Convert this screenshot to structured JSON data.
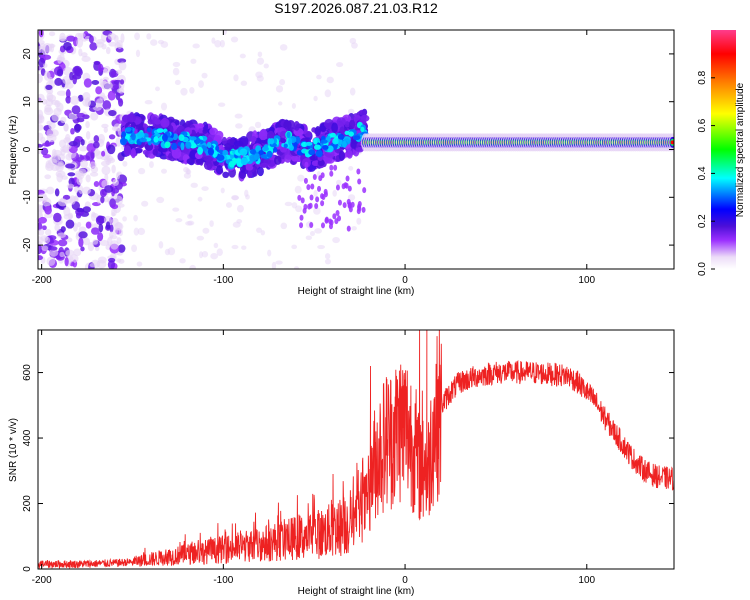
{
  "figure_title": "S197.2026.087.21.03.R12",
  "chart_data": [
    {
      "type": "heatmap",
      "title": "S197.2026.087.21.03.R12",
      "xlabel": "Height of straight line (km)",
      "ylabel": "Frequency (Hz)",
      "xlim": [
        -202,
        148
      ],
      "ylim": [
        -25,
        25
      ],
      "xticks": [
        -200,
        -100,
        0,
        100
      ],
      "yticks": [
        -20,
        -10,
        0,
        10,
        20
      ],
      "colorbar": {
        "label": "Normalized spectral amplitude",
        "range": [
          0.0,
          1.0
        ],
        "ticks": [
          0.0,
          0.2,
          0.4,
          0.6,
          0.8
        ],
        "colormap": [
          "#ffffff",
          "#e6d3f5",
          "#9b30ff",
          "#4b0fd8",
          "#0000ff",
          "#00ffff",
          "#00ff00",
          "#ffff00",
          "#ff7f00",
          "#ff0000",
          "#ff3c8c"
        ]
      },
      "features": [
        {
          "region": "scattered noise",
          "x_range": [
            -202,
            -155
          ],
          "freq_range": [
            -25,
            25
          ],
          "amplitude": 0.15
        },
        {
          "region": "wandering signal",
          "x_range": [
            -155,
            -22
          ],
          "freq_center": [
            3,
            3,
            2,
            1,
            -2,
            -1,
            2,
            0,
            2,
            4
          ],
          "amplitude": 0.35
        },
        {
          "region": "steady tone",
          "x_range": [
            -22,
            148
          ],
          "freq_center": 1.5,
          "amplitude": 0.9
        }
      ]
    },
    {
      "type": "line",
      "xlabel": "Height of straight line (km)",
      "ylabel": "SNR (10 * v/v)",
      "xlim": [
        -202,
        148
      ],
      "ylim": [
        0,
        730
      ],
      "xticks": [
        -200,
        -100,
        0,
        100
      ],
      "yticks": [
        0,
        200,
        400,
        600
      ],
      "series": [
        {
          "name": "SNR",
          "color": "#ee2222",
          "x": [
            -202,
            -180,
            -160,
            -150,
            -140,
            -120,
            -100,
            -80,
            -60,
            -45,
            -35,
            -28,
            -25,
            -22,
            -20,
            -18,
            -15,
            -12,
            -10,
            -8,
            -5,
            -3,
            0,
            3,
            6,
            8,
            10,
            12,
            15,
            20,
            25,
            30,
            40,
            50,
            60,
            70,
            80,
            90,
            95,
            100,
            105,
            110,
            115,
            120,
            125,
            130,
            135,
            140,
            148
          ],
          "y": [
            15,
            15,
            18,
            22,
            30,
            45,
            60,
            75,
            95,
            110,
            130,
            150,
            170,
            190,
            230,
            300,
            350,
            380,
            395,
            400,
            420,
            440,
            440,
            410,
            360,
            300,
            380,
            260,
            420,
            500,
            540,
            570,
            590,
            600,
            600,
            600,
            595,
            590,
            570,
            540,
            510,
            460,
            420,
            380,
            340,
            310,
            290,
            280,
            275
          ],
          "spikes": [
            {
              "x": -19,
              "y": 620
            },
            {
              "x": -10,
              "y": 580
            },
            {
              "x": 8,
              "y": 730
            },
            {
              "x": 10,
              "y": 160
            },
            {
              "x": 12,
              "y": 730
            }
          ]
        }
      ]
    }
  ]
}
